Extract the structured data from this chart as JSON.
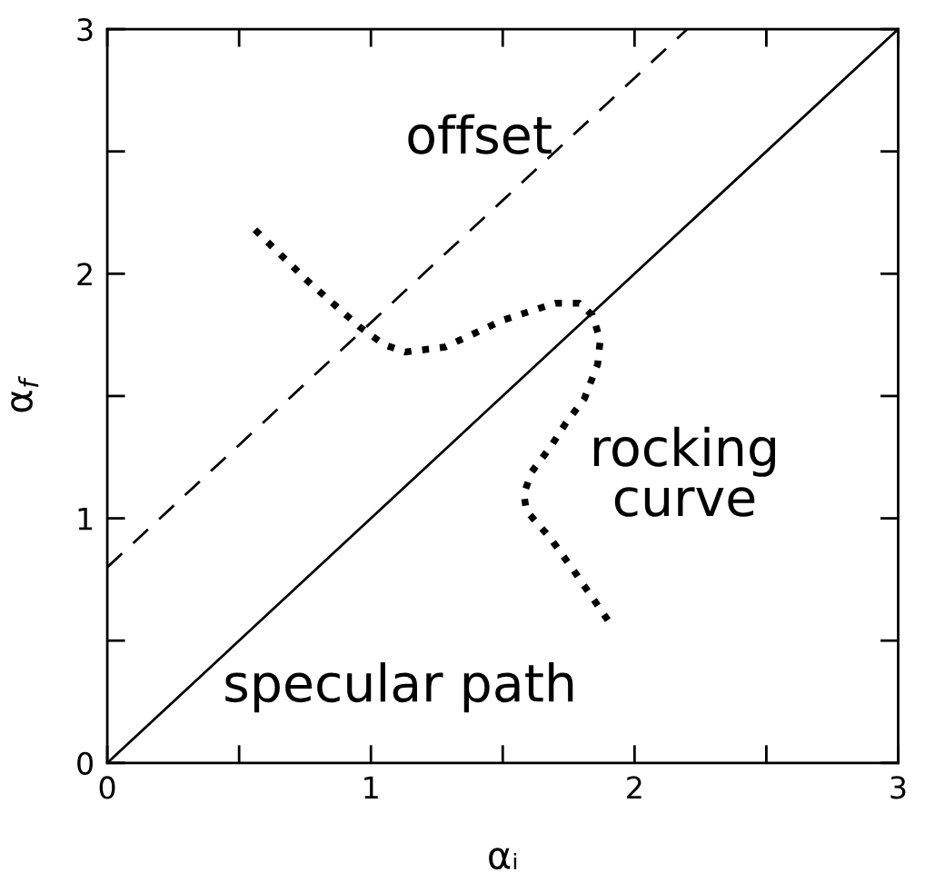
{
  "chart_data": {
    "type": "line",
    "xlabel": "αᵢ",
    "ylabel": "α$_{f}$",
    "xlim": [
      0,
      3
    ],
    "ylim": [
      0,
      3
    ],
    "xticks": [
      0,
      {
        "value": 0.5,
        "label": null
      },
      1,
      {
        "value": 1.5,
        "label": null
      },
      2,
      {
        "value": 2.5,
        "label": null
      },
      3
    ],
    "yticks": [
      0,
      {
        "value": 0.5,
        "label": null
      },
      1,
      {
        "value": 1.5,
        "label": null
      },
      2,
      {
        "value": 2.5,
        "label": null
      },
      3
    ],
    "grid": false,
    "legend": false,
    "marker": "none",
    "series": [
      {
        "name": "specular path",
        "color": "#000000",
        "line_style": "solid",
        "x": [
          0,
          3
        ],
        "values": [
          0,
          3
        ]
      },
      {
        "name": "offset",
        "color": "#000000",
        "line_style": "dashed",
        "x": [
          0,
          2.2
        ],
        "values": [
          0.8,
          3.0
        ]
      },
      {
        "name": "rocking\ncurve",
        "color": "#000000",
        "line_style": "dotted",
        "x": [
          0.56,
          0.76,
          0.96,
          1.05,
          1.13,
          1.28,
          1.5,
          1.7,
          1.79,
          1.84,
          1.87,
          1.86,
          1.81,
          1.74,
          1.68,
          1.61,
          1.58,
          1.59,
          1.68,
          1.78,
          1.92
        ],
        "values": [
          2.18,
          1.97,
          1.78,
          1.71,
          1.68,
          1.7,
          1.81,
          1.88,
          1.88,
          1.83,
          1.73,
          1.63,
          1.49,
          1.39,
          1.29,
          1.19,
          1.1,
          1.03,
          0.92,
          0.77,
          0.55
        ]
      }
    ]
  }
}
